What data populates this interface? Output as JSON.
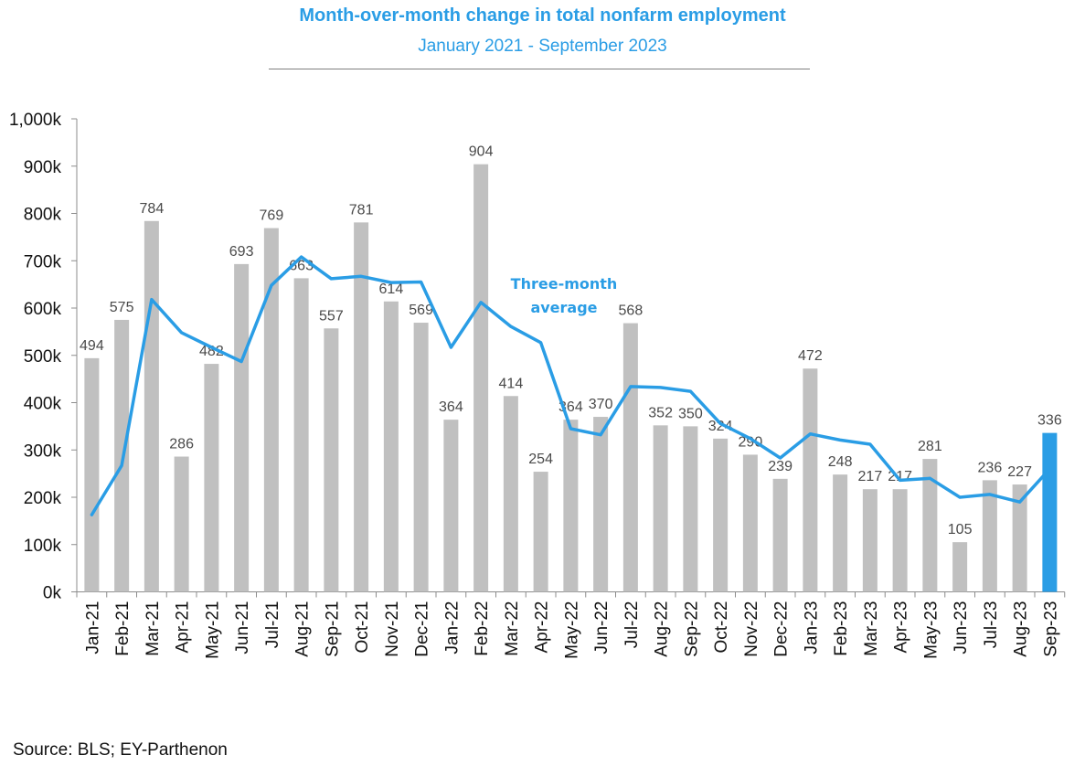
{
  "chart_data": {
    "type": "bar",
    "title": "Month-over-month change in total nonfarm employment",
    "subtitle": "January 2021 - September 2023",
    "source": "Source: BLS; EY-Parthenon",
    "categories": [
      "Jan-21",
      "Feb-21",
      "Mar-21",
      "Apr-21",
      "May-21",
      "Jun-21",
      "Jul-21",
      "Aug-21",
      "Sep-21",
      "Oct-21",
      "Nov-21",
      "Dec-21",
      "Jan-22",
      "Feb-22",
      "Mar-22",
      "Apr-22",
      "May-22",
      "Jun-22",
      "Jul-22",
      "Aug-22",
      "Sep-22",
      "Oct-22",
      "Nov-22",
      "Dec-22",
      "Jan-23",
      "Feb-23",
      "Mar-23",
      "Apr-23",
      "May-23",
      "Jun-23",
      "Jul-23",
      "Aug-23",
      "Sep-23"
    ],
    "series": [
      {
        "type": "bar",
        "values": [
          494,
          575,
          784,
          286,
          482,
          693,
          769,
          663,
          557,
          781,
          614,
          569,
          364,
          904,
          414,
          254,
          364,
          370,
          568,
          352,
          350,
          324,
          290,
          239,
          472,
          248,
          217,
          217,
          281,
          105,
          236,
          227,
          336
        ],
        "data_labels": [
          "494",
          "575",
          "784",
          "286",
          "482",
          "693",
          "769",
          "663",
          "557",
          "781",
          "614",
          "569",
          "364",
          "904",
          "414",
          "254",
          "364",
          "370",
          "568",
          "352",
          "350",
          "324",
          "290",
          "239",
          "472",
          "248",
          "217",
          "217",
          "281",
          "105",
          "236",
          "227",
          "336"
        ],
        "color": "#c0c0c0",
        "highlight_color": "#2a9de5",
        "highlight_index": 32
      },
      {
        "type": "line",
        "name": "Three-month average",
        "name_lines": [
          "Three-month",
          "average"
        ],
        "values": [
          163,
          267,
          618,
          548,
          517,
          487,
          648,
          708,
          662,
          667,
          654,
          655,
          517,
          612,
          561,
          527,
          345,
          332,
          434,
          432,
          424,
          356,
          324,
          283,
          334,
          321,
          312,
          236,
          240,
          200,
          206,
          190,
          260
        ],
        "color": "#2a9de5"
      }
    ],
    "yticks": [
      "0k",
      "100k",
      "200k",
      "300k",
      "400k",
      "500k",
      "600k",
      "700k",
      "800k",
      "900k",
      "1,000k"
    ],
    "ylim": [
      0,
      1000
    ],
    "xlabel": "",
    "ylabel": "",
    "grid": false,
    "legend": "none"
  }
}
